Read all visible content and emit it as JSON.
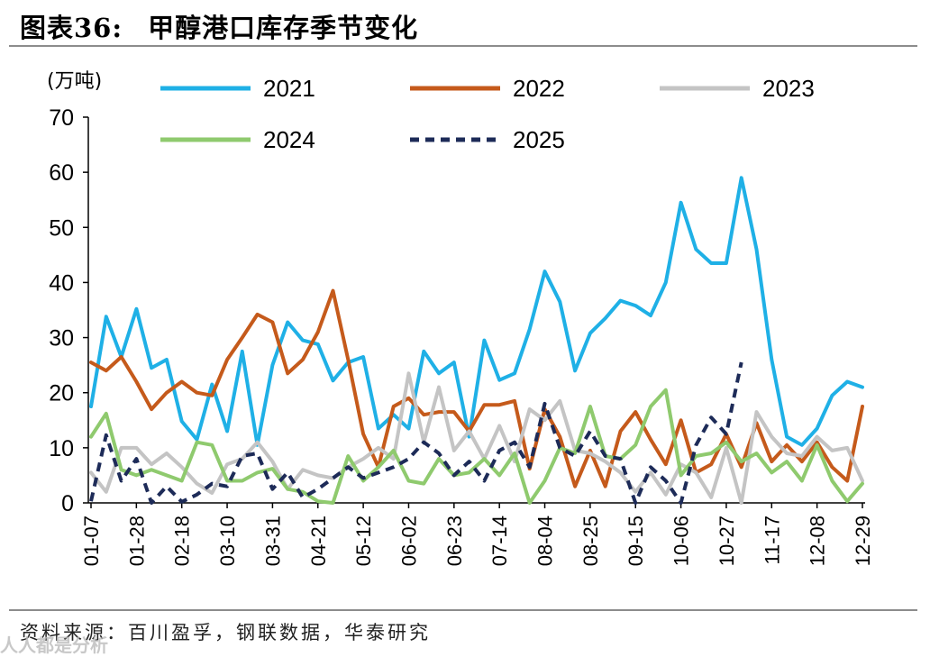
{
  "header": {
    "title_prefix": "图表36:",
    "title_main": "甲醇港口库存季节变化"
  },
  "footer": {
    "source": "资料来源：百川盈孚，钢联数据，华泰研究",
    "watermark": "人人都是分析"
  },
  "chart_data": {
    "type": "line",
    "title": "甲醇港口库存季节变化",
    "ylabel": "(万吨)",
    "xlabel": "",
    "ylim": [
      0,
      70
    ],
    "yticks": [
      0,
      10,
      20,
      30,
      40,
      50,
      60,
      70
    ],
    "x_count": 52,
    "xtick_labels": [
      "01-07",
      "01-28",
      "02-18",
      "03-10",
      "03-31",
      "04-21",
      "05-12",
      "06-02",
      "06-23",
      "07-14",
      "08-04",
      "08-25",
      "09-15",
      "10-06",
      "10-27",
      "11-17",
      "12-08",
      "12-29"
    ],
    "xtick_indices": [
      0,
      3,
      6,
      9,
      12,
      15,
      18,
      21,
      24,
      27,
      30,
      33,
      36,
      39,
      42,
      45,
      48,
      51
    ],
    "legend_position": "top",
    "series": [
      {
        "name": "2021",
        "color": "#1fb0e6",
        "dash": "solid",
        "values": [
          17.5,
          33.8,
          26.5,
          35.2,
          24.5,
          26,
          14.8,
          11.5,
          21.5,
          13,
          27.5,
          10.5,
          25,
          32.8,
          29.5,
          28.8,
          22.2,
          25.5,
          26.5,
          13.5,
          16,
          13.5,
          27.5,
          23.5,
          25.5,
          12,
          29.5,
          22.3,
          23.5,
          31.5,
          42,
          36.5,
          24,
          30.8,
          33.5,
          36.7,
          35.8,
          34,
          40,
          54.5,
          46,
          43.5,
          43.5,
          59,
          46,
          26,
          12,
          10.5,
          13.5,
          19.5,
          22,
          21
        ]
      },
      {
        "name": "2022",
        "color": "#c55a1b",
        "dash": "solid",
        "values": [
          25.5,
          24,
          26.5,
          22,
          17,
          20,
          22,
          20,
          19.5,
          26,
          30,
          34.2,
          32.8,
          23.5,
          26,
          31,
          38.5,
          26,
          12.5,
          6.5,
          17.5,
          19,
          16,
          16.5,
          16.5,
          13,
          17.8,
          17.8,
          18.5,
          6.2,
          17,
          12,
          3,
          9.5,
          3,
          13,
          16.5,
          11.5,
          7,
          15,
          5.5,
          7,
          12.5,
          6.5,
          14.5,
          7.5,
          10.5,
          7.5,
          11,
          6.5,
          4,
          17.5
        ]
      },
      {
        "name": "2023",
        "color": "#c4c4c4",
        "dash": "solid",
        "values": [
          5.5,
          2,
          10,
          10,
          7,
          9,
          6.5,
          3.5,
          1.8,
          7,
          8,
          11,
          7.5,
          2.5,
          6,
          5,
          4.5,
          6.5,
          8,
          10,
          8,
          23.5,
          11,
          21,
          9.5,
          13,
          8,
          14,
          7.5,
          17,
          15,
          18.5,
          9.5,
          9,
          7.5,
          5.5,
          2,
          5.5,
          1.5,
          7,
          5.5,
          1,
          10,
          0,
          16.5,
          12,
          9,
          8.5,
          12,
          9.5,
          10,
          4
        ]
      },
      {
        "name": "2024",
        "color": "#8fca6e",
        "dash": "solid",
        "values": [
          12,
          16.2,
          6,
          5,
          6,
          5,
          4,
          11,
          10.5,
          4,
          4,
          5.5,
          6.2,
          2.5,
          2,
          0.3,
          0,
          8.5,
          4,
          6.5,
          9.5,
          4,
          3.5,
          8,
          5,
          5.5,
          8,
          5,
          9,
          0,
          4,
          10,
          9,
          17.5,
          8.5,
          8,
          10.5,
          17.5,
          20.5,
          5,
          8.5,
          9,
          11,
          7.5,
          9,
          5.5,
          7.5,
          4,
          10.5,
          4,
          0.3,
          3.5
        ]
      },
      {
        "name": "2025",
        "color": "#1d2b58",
        "dash": "dashed",
        "values": [
          0.3,
          12.3,
          4,
          8,
          0,
          3,
          0.2,
          1.5,
          3.5,
          3,
          8.5,
          9,
          2.5,
          5.5,
          1,
          2.5,
          4.5,
          6.5,
          4.5,
          5.5,
          6.5,
          8,
          11,
          9,
          5,
          7.5,
          4,
          9.5,
          11,
          6.5,
          18,
          10,
          8.5,
          13,
          8.5,
          8,
          0,
          6.5,
          4,
          0,
          10.5,
          15.5,
          12.5,
          25.5
        ]
      }
    ]
  }
}
